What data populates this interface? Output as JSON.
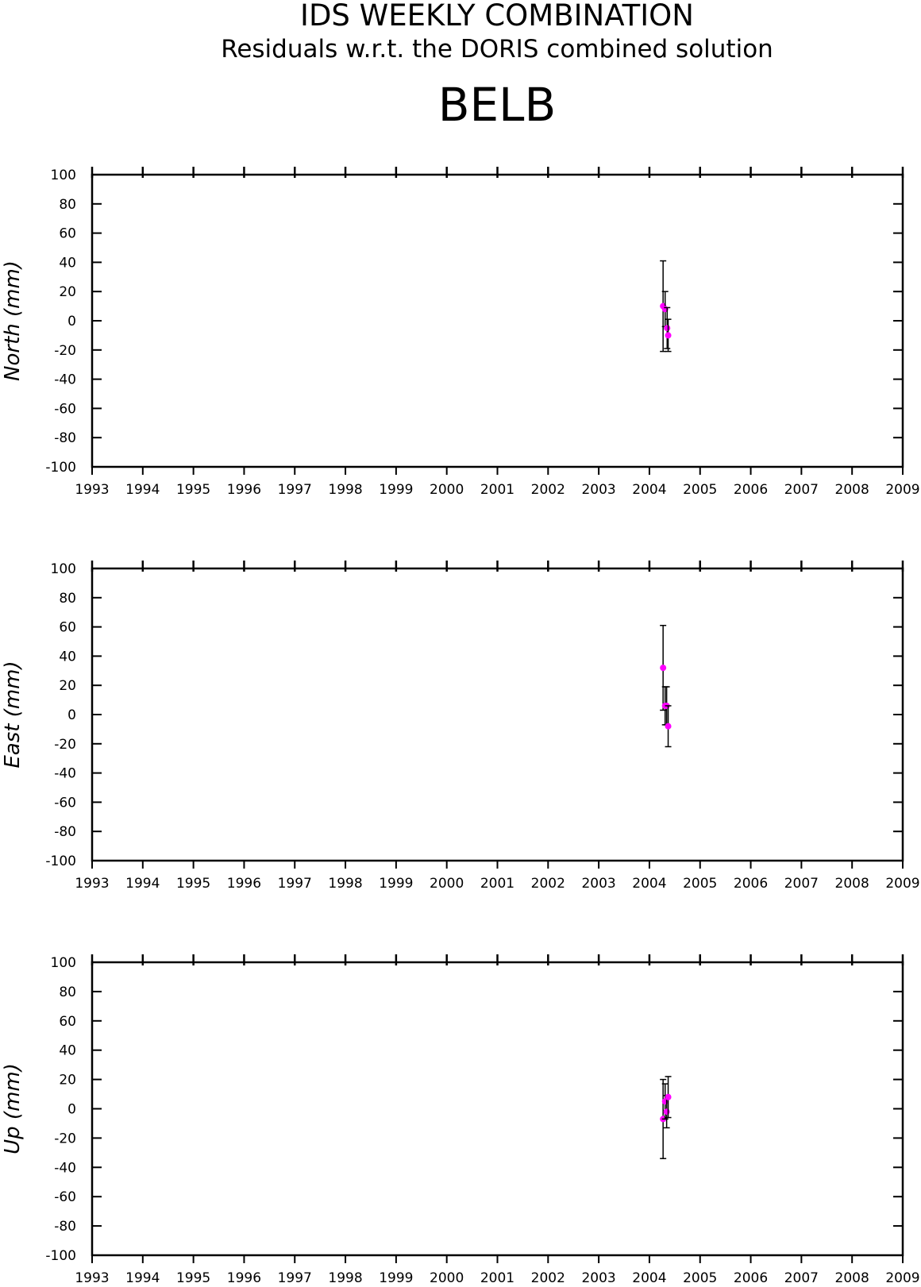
{
  "header": {
    "title": "IDS WEEKLY COMBINATION",
    "subtitle": "Residuals w.r.t. the DORIS combined solution",
    "station": "BELB"
  },
  "chart_data": [
    {
      "type": "scatter",
      "ylabel": "North (mm)",
      "color": "#ff00ff",
      "x": [
        2004.27,
        2004.31,
        2004.35,
        2004.37
      ],
      "values": [
        10,
        8,
        -5,
        -10
      ],
      "errors": [
        31,
        12,
        14,
        11
      ],
      "xlim": [
        1993,
        2009
      ],
      "ylim": [
        -100,
        100
      ],
      "xticks": [
        1993,
        1994,
        1995,
        1996,
        1997,
        1998,
        1999,
        2000,
        2001,
        2002,
        2003,
        2004,
        2005,
        2006,
        2007,
        2008,
        2009
      ],
      "yticks": [
        -100,
        -80,
        -60,
        -40,
        -20,
        0,
        20,
        40,
        60,
        80,
        100
      ]
    },
    {
      "type": "scatter",
      "ylabel": "East (mm)",
      "color": "#ff00ff",
      "x": [
        2004.27,
        2004.31,
        2004.34,
        2004.37
      ],
      "values": [
        32,
        6,
        6,
        -8
      ],
      "errors": [
        29,
        13,
        13,
        14
      ],
      "xlim": [
        1993,
        2009
      ],
      "ylim": [
        -100,
        100
      ],
      "xticks": [
        1993,
        1994,
        1995,
        1996,
        1997,
        1998,
        1999,
        2000,
        2001,
        2002,
        2003,
        2004,
        2005,
        2006,
        2007,
        2008,
        2009
      ],
      "yticks": [
        -100,
        -80,
        -60,
        -40,
        -20,
        0,
        20,
        40,
        60,
        80,
        100
      ]
    },
    {
      "type": "scatter",
      "ylabel": "Up (mm)",
      "color": "#ff00ff",
      "x": [
        2004.27,
        2004.31,
        2004.34,
        2004.37
      ],
      "values": [
        -7,
        5,
        -2,
        8
      ],
      "errors": [
        27,
        12,
        11,
        14
      ],
      "xlim": [
        1993,
        2009
      ],
      "ylim": [
        -100,
        100
      ],
      "xticks": [
        1993,
        1994,
        1995,
        1996,
        1997,
        1998,
        1999,
        2000,
        2001,
        2002,
        2003,
        2004,
        2005,
        2006,
        2007,
        2008,
        2009
      ],
      "yticks": [
        -100,
        -80,
        -60,
        -40,
        -20,
        0,
        20,
        40,
        60,
        80,
        100
      ]
    }
  ]
}
